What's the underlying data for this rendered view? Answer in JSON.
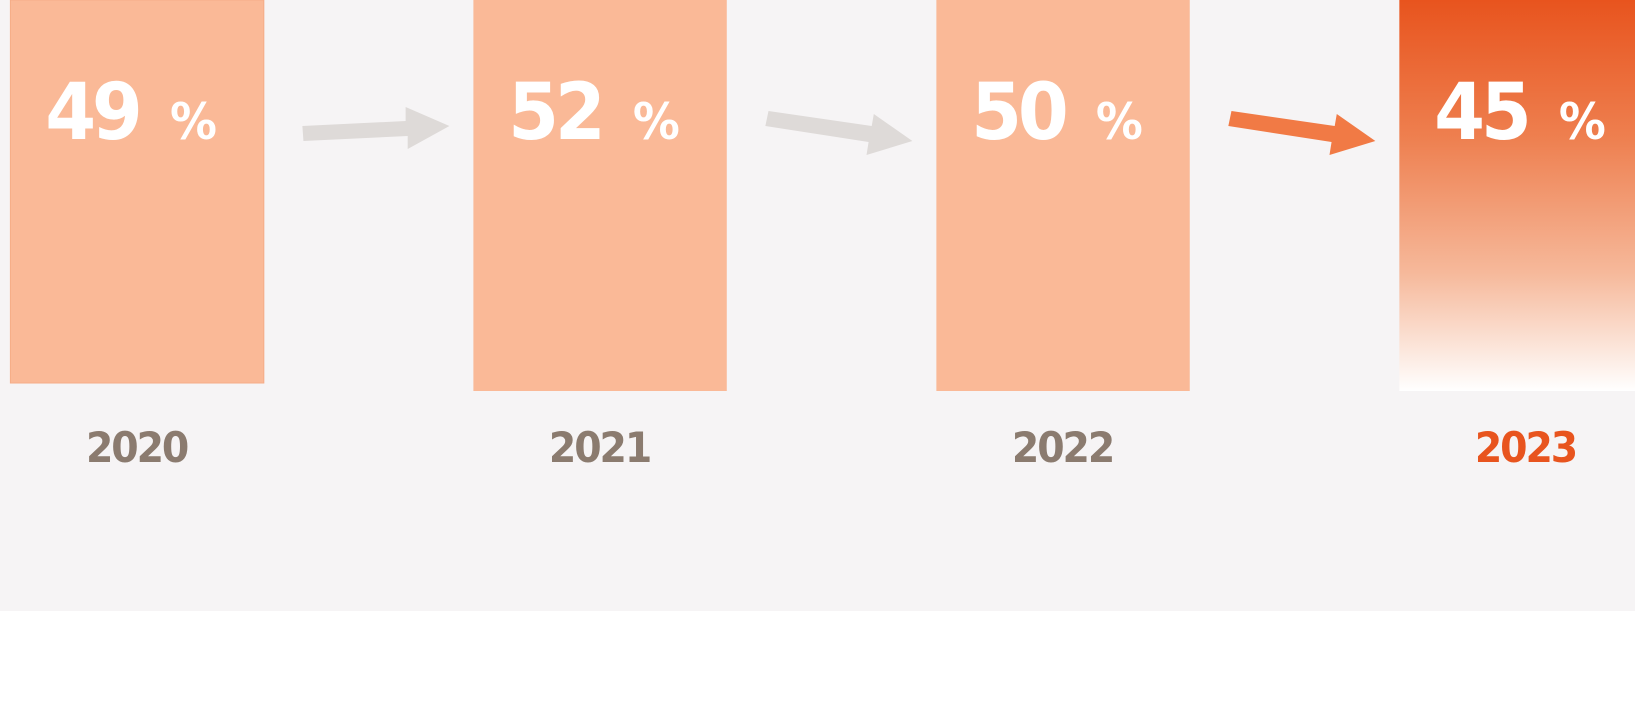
{
  "items": [
    {
      "value": "49",
      "unit": "%",
      "year": "2020"
    },
    {
      "value": "52",
      "unit": "%",
      "year": "2021"
    },
    {
      "value": "50",
      "unit": "%",
      "year": "2022"
    },
    {
      "value": "45",
      "unit": "%",
      "year": "2023"
    }
  ]
}
